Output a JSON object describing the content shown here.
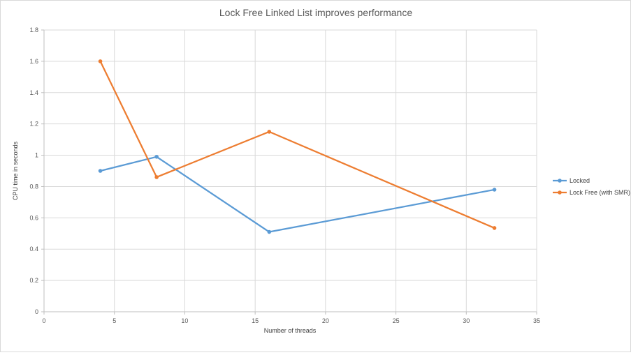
{
  "chart_data": {
    "type": "scatter",
    "title": "Lock Free Linked List improves performance",
    "xlabel": "Number of threads",
    "ylabel": "CPU time in seconds",
    "xlim": [
      0,
      35
    ],
    "ylim": [
      0,
      1.8
    ],
    "x_ticks": [
      0,
      5,
      10,
      15,
      20,
      25,
      30,
      35
    ],
    "y_ticks": [
      0,
      0.2,
      0.4,
      0.6,
      0.8,
      1,
      1.2,
      1.4,
      1.6,
      1.8
    ],
    "grid": true,
    "legend_position": "right",
    "series": [
      {
        "name": "Locked",
        "color": "#5b9bd5",
        "points": [
          {
            "x": 4,
            "y": 0.9
          },
          {
            "x": 8,
            "y": 0.99
          },
          {
            "x": 16,
            "y": 0.51
          },
          {
            "x": 32,
            "y": 0.78
          }
        ]
      },
      {
        "name": "Lock Free (with SMR)",
        "color": "#ed7d31",
        "points": [
          {
            "x": 4,
            "y": 1.6
          },
          {
            "x": 8,
            "y": 0.86
          },
          {
            "x": 16,
            "y": 1.15
          },
          {
            "x": 32,
            "y": 0.535
          }
        ]
      }
    ]
  }
}
